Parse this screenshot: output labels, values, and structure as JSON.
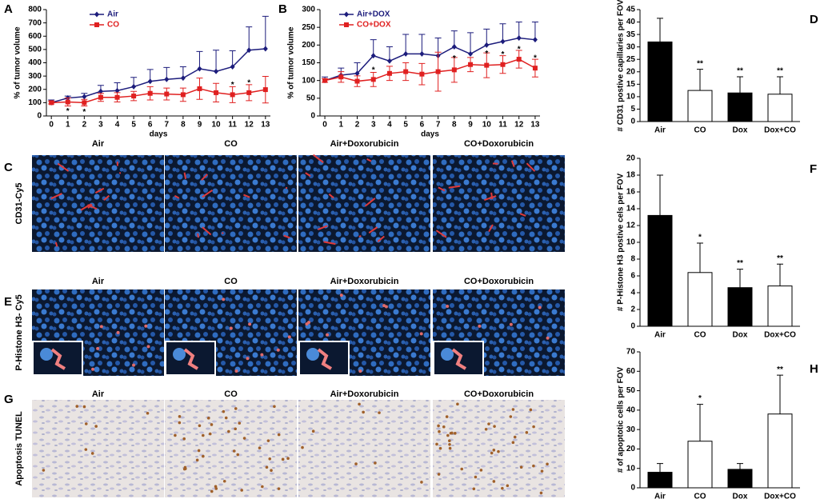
{
  "chart_data": [
    {
      "type": "line",
      "panel": "A",
      "ylabel": "% of tumor volume",
      "xlabel": "days",
      "x": [
        0,
        1,
        2,
        3,
        4,
        5,
        6,
        7,
        8,
        9,
        10,
        11,
        12,
        13
      ],
      "xticks": [
        0,
        1,
        2,
        3,
        4,
        5,
        6,
        7,
        8,
        9,
        10,
        11,
        12,
        13
      ],
      "xlim": [
        -0.3,
        13.3
      ],
      "ylim": [
        0,
        800
      ],
      "yticks": [
        0,
        100,
        200,
        300,
        400,
        500,
        600,
        700,
        800
      ],
      "series": [
        {
          "name": "Air",
          "color": "#1c1c7c",
          "marker": "diamond",
          "values": [
            100,
            135,
            145,
            185,
            190,
            220,
            260,
            275,
            285,
            355,
            335,
            370,
            495,
            505
          ],
          "errors": [
            20,
            15,
            25,
            45,
            60,
            70,
            90,
            90,
            85,
            130,
            160,
            120,
            175,
            245
          ],
          "significance": [
            null,
            null,
            null,
            null,
            null,
            null,
            null,
            null,
            null,
            null,
            null,
            null,
            null,
            null
          ]
        },
        {
          "name": "CO",
          "color": "#e02020",
          "marker": "square",
          "values": [
            100,
            105,
            100,
            140,
            140,
            150,
            170,
            165,
            160,
            205,
            175,
            160,
            175,
            198
          ],
          "errors": [
            10,
            30,
            25,
            30,
            35,
            35,
            50,
            45,
            50,
            80,
            70,
            60,
            60,
            100
          ],
          "significance": [
            null,
            "*",
            "*",
            null,
            null,
            null,
            null,
            null,
            null,
            null,
            null,
            "*",
            "*",
            null
          ]
        }
      ]
    },
    {
      "type": "line",
      "panel": "B",
      "ylabel": "% of tumor volume",
      "xlabel": "days",
      "x": [
        0,
        1,
        2,
        3,
        4,
        5,
        6,
        7,
        8,
        9,
        10,
        11,
        12,
        13
      ],
      "xticks": [
        0,
        1,
        2,
        3,
        4,
        5,
        6,
        7,
        8,
        9,
        10,
        11,
        12,
        13
      ],
      "xlim": [
        -0.3,
        13.3
      ],
      "ylim": [
        0,
        300
      ],
      "yticks": [
        0,
        50,
        100,
        150,
        200,
        250,
        300
      ],
      "series": [
        {
          "name": "Air+DOX",
          "color": "#1c1c7c",
          "marker": "diamond",
          "values": [
            100,
            115,
            120,
            170,
            155,
            175,
            175,
            170,
            195,
            175,
            200,
            210,
            220,
            215
          ],
          "errors": [
            10,
            20,
            30,
            45,
            40,
            55,
            55,
            50,
            45,
            60,
            45,
            50,
            45,
            50
          ],
          "significance": [
            null,
            null,
            null,
            null,
            null,
            null,
            null,
            null,
            null,
            null,
            null,
            null,
            null,
            null
          ]
        },
        {
          "name": "CO+DOX",
          "color": "#e02020",
          "marker": "square",
          "values": [
            100,
            110,
            98,
            103,
            120,
            125,
            118,
            125,
            130,
            145,
            143,
            145,
            160,
            135
          ],
          "errors": [
            5,
            15,
            15,
            20,
            20,
            25,
            30,
            55,
            35,
            20,
            35,
            25,
            25,
            25
          ],
          "significance": [
            null,
            null,
            null,
            "*",
            null,
            null,
            null,
            null,
            "*",
            null,
            "*",
            "*",
            "*",
            "*"
          ]
        }
      ]
    },
    {
      "type": "bar",
      "panel": "D",
      "ylabel": "# CD31 postive capillaries per FOV",
      "categories": [
        "Air",
        "CO",
        "Dox",
        "Dox+CO"
      ],
      "values": [
        32,
        12.5,
        11.5,
        11
      ],
      "errors": [
        9.5,
        8.5,
        6.5,
        7
      ],
      "colors": [
        "#000000",
        "#ffffff",
        "#000000",
        "#ffffff"
      ],
      "significance": [
        null,
        "**",
        "**",
        "**"
      ],
      "ylim": [
        0,
        45
      ],
      "yticks": [
        0,
        5,
        10,
        15,
        20,
        25,
        30,
        35,
        40,
        45
      ]
    },
    {
      "type": "bar",
      "panel": "F",
      "ylabel": "# P-Histone H3 postive cels per FOV",
      "categories": [
        "Air",
        "CO",
        "Dox",
        "Dox+CO"
      ],
      "values": [
        13.2,
        6.4,
        4.6,
        4.8
      ],
      "errors": [
        4.8,
        3.5,
        2.2,
        2.6
      ],
      "colors": [
        "#000000",
        "#ffffff",
        "#000000",
        "#ffffff"
      ],
      "significance": [
        null,
        "*",
        "**",
        "**"
      ],
      "ylim": [
        0,
        20
      ],
      "yticks": [
        0,
        2,
        4,
        6,
        8,
        10,
        12,
        14,
        16,
        18,
        20
      ]
    },
    {
      "type": "bar",
      "panel": "H",
      "ylabel": "# of apoptotic cells per FOV",
      "categories": [
        "Air",
        "CO",
        "Dox",
        "Dox+CO"
      ],
      "values": [
        8,
        24,
        9.5,
        38
      ],
      "errors": [
        4.5,
        19,
        3,
        20
      ],
      "colors": [
        "#000000",
        "#ffffff",
        "#000000",
        "#ffffff"
      ],
      "significance": [
        null,
        "*",
        null,
        "**"
      ],
      "ylim": [
        0,
        70
      ],
      "yticks": [
        0,
        10,
        20,
        30,
        40,
        50,
        60,
        70
      ]
    }
  ],
  "images": [
    {
      "letter": "C",
      "row_label": "CD31-Cy5",
      "columns": [
        "Air",
        "CO",
        "Air+Doxorubicin",
        "CO+Doxorubicin"
      ]
    },
    {
      "letter": "E",
      "row_label": "P-Histone H3- Cy5",
      "columns": [
        "Air",
        "CO",
        "Air+Doxorubicin",
        "CO+Doxorubicin"
      ]
    },
    {
      "letter": "G",
      "row_label": "Apoptosis TUNEL",
      "columns": [
        "Air",
        "CO",
        "Air+Doxorubicin",
        "CO+Doxorubicin"
      ]
    }
  ]
}
